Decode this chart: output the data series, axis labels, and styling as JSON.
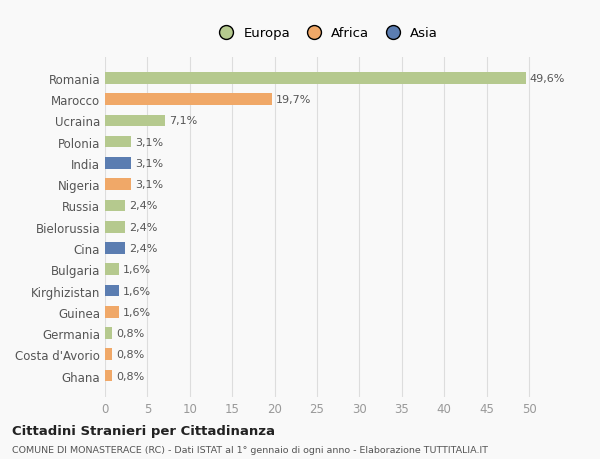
{
  "countries": [
    "Romania",
    "Marocco",
    "Ucraina",
    "Polonia",
    "India",
    "Nigeria",
    "Russia",
    "Bielorussia",
    "Cina",
    "Bulgaria",
    "Kirghizistan",
    "Guinea",
    "Germania",
    "Costa d'Avorio",
    "Ghana"
  ],
  "values": [
    49.6,
    19.7,
    7.1,
    3.1,
    3.1,
    3.1,
    2.4,
    2.4,
    2.4,
    1.6,
    1.6,
    1.6,
    0.8,
    0.8,
    0.8
  ],
  "labels": [
    "49,6%",
    "19,7%",
    "7,1%",
    "3,1%",
    "3,1%",
    "3,1%",
    "2,4%",
    "2,4%",
    "2,4%",
    "1,6%",
    "1,6%",
    "1,6%",
    "0,8%",
    "0,8%",
    "0,8%"
  ],
  "continents": [
    "Europa",
    "Africa",
    "Europa",
    "Europa",
    "Asia",
    "Africa",
    "Europa",
    "Europa",
    "Asia",
    "Europa",
    "Asia",
    "Africa",
    "Europa",
    "Africa",
    "Africa"
  ],
  "colors": {
    "Europa": "#b5c98e",
    "Africa": "#f0a868",
    "Asia": "#5b7db1"
  },
  "xlim": [
    0,
    52
  ],
  "xticks": [
    0,
    5,
    10,
    15,
    20,
    25,
    30,
    35,
    40,
    45,
    50
  ],
  "title": "Cittadini Stranieri per Cittadinanza",
  "subtitle": "COMUNE DI MONASTERACE (RC) - Dati ISTAT al 1° gennaio di ogni anno - Elaborazione TUTTITALIA.IT",
  "background_color": "#f9f9f9",
  "grid_color": "#dddddd",
  "bar_height": 0.55
}
